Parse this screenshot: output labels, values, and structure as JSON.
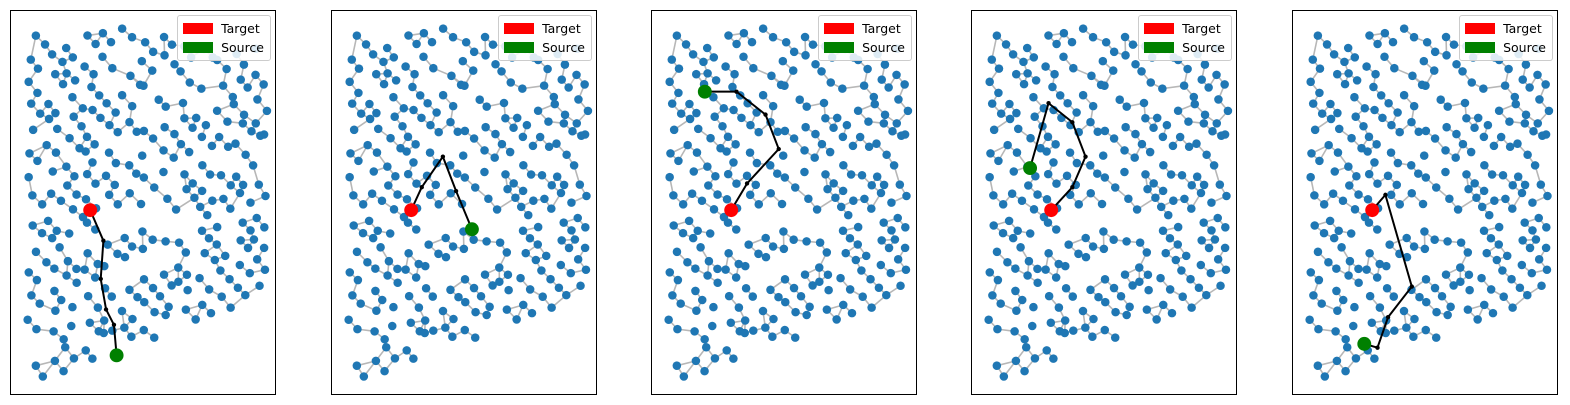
{
  "colors": {
    "node": "#1f77b4",
    "edge": "#b7b7b7",
    "path": "#000000",
    "target": "#ff0000",
    "source": "#008000"
  },
  "legend": {
    "items": [
      {
        "label": "Target",
        "color": "#ff0000"
      },
      {
        "label": "Source",
        "color": "#008000"
      }
    ]
  },
  "panels": [
    {
      "target": [
        0.3,
        0.52
      ],
      "source": [
        0.4,
        0.9
      ],
      "path": [
        [
          0.3,
          0.52
        ],
        [
          0.35,
          0.6
        ],
        [
          0.34,
          0.7
        ],
        [
          0.36,
          0.78
        ],
        [
          0.39,
          0.82
        ],
        [
          0.4,
          0.9
        ]
      ]
    },
    {
      "target": [
        0.3,
        0.52
      ],
      "source": [
        0.53,
        0.57
      ],
      "path": [
        [
          0.3,
          0.52
        ],
        [
          0.34,
          0.46
        ],
        [
          0.42,
          0.38
        ],
        [
          0.47,
          0.47
        ],
        [
          0.53,
          0.57
        ]
      ]
    },
    {
      "target": [
        0.3,
        0.52
      ],
      "source": [
        0.2,
        0.21
      ],
      "path": [
        [
          0.3,
          0.52
        ],
        [
          0.36,
          0.45
        ],
        [
          0.48,
          0.36
        ],
        [
          0.43,
          0.27
        ],
        [
          0.32,
          0.21
        ],
        [
          0.2,
          0.21
        ]
      ]
    },
    {
      "target": [
        0.3,
        0.52
      ],
      "source": [
        0.22,
        0.41
      ],
      "path": [
        [
          0.3,
          0.52
        ],
        [
          0.38,
          0.46
        ],
        [
          0.43,
          0.38
        ],
        [
          0.38,
          0.29
        ],
        [
          0.29,
          0.24
        ],
        [
          0.22,
          0.41
        ]
      ]
    },
    {
      "target": [
        0.3,
        0.52
      ],
      "source": [
        0.27,
        0.87
      ],
      "path": [
        [
          0.3,
          0.52
        ],
        [
          0.35,
          0.48
        ],
        [
          0.45,
          0.72
        ],
        [
          0.36,
          0.8
        ],
        [
          0.32,
          0.88
        ],
        [
          0.27,
          0.87
        ]
      ]
    }
  ]
}
